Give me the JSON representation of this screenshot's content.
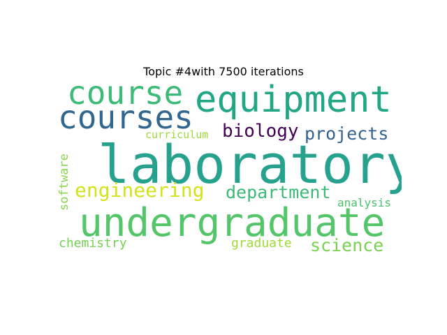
{
  "title": "Topic #4with 7500 iterations",
  "words": [
    {
      "text": "laboratory",
      "color": "#25a18e"
    },
    {
      "text": "undergraduate",
      "color": "#54c568"
    },
    {
      "text": "equipment",
      "color": "#22a785"
    },
    {
      "text": "courses",
      "color": "#31668e"
    },
    {
      "text": "course",
      "color": "#3bbb75"
    },
    {
      "text": "engineering",
      "color": "#d2e21b"
    },
    {
      "text": "department",
      "color": "#3aba76"
    },
    {
      "text": "biology",
      "color": "#440154"
    },
    {
      "text": "projects",
      "color": "#34618d"
    },
    {
      "text": "science",
      "color": "#7ad151"
    },
    {
      "text": "chemistry",
      "color": "#75d054"
    },
    {
      "text": "graduate",
      "color": "#a0da39"
    },
    {
      "text": "analysis",
      "color": "#4ac16d"
    },
    {
      "text": "curriculum",
      "color": "#9dd93b"
    },
    {
      "text": "software",
      "color": "#86d549"
    }
  ]
}
